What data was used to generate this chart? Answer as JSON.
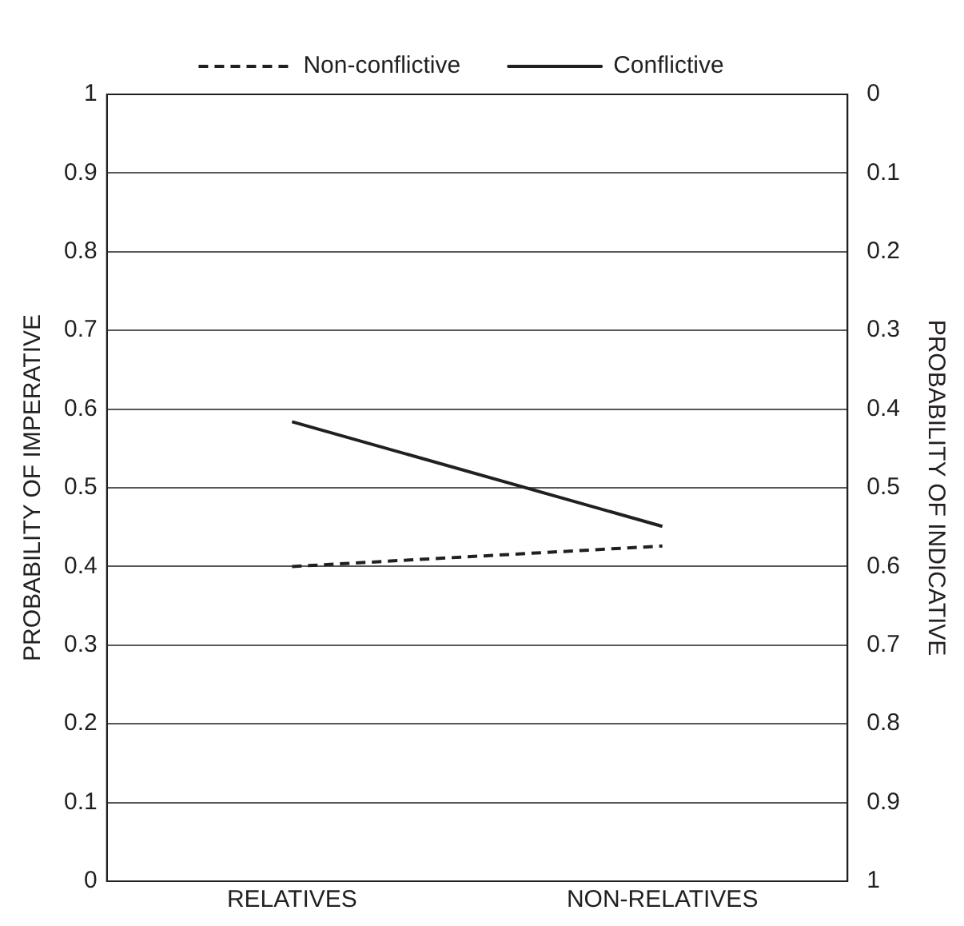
{
  "chart_data": {
    "type": "line",
    "ylabel": "PROBABILITY OF IMPERATIVE",
    "y2label": "PROBABILITY OF INDICATIVE",
    "categories": [
      "RELATIVES",
      "NON-RELATIVES"
    ],
    "series": [
      {
        "name": "Non-conflictive",
        "color": "#231f20",
        "values": [
          0.4,
          0.426
        ],
        "line_style": "dashed"
      },
      {
        "name": "Conflictive",
        "color": "#231f20",
        "values": [
          0.584,
          0.451
        ],
        "line_style": "solid"
      }
    ],
    "ylim": [
      0,
      1
    ],
    "yticks": [
      0,
      0.1,
      0.2,
      0.3,
      0.4,
      0.5,
      0.6,
      0.7,
      0.8,
      0.9,
      1
    ],
    "y2lim": [
      1,
      0
    ],
    "y2ticks": [
      1,
      0.9,
      0.8,
      0.7,
      0.6,
      0.5,
      0.4,
      0.3,
      0.2,
      0.1,
      0
    ],
    "grid": "y",
    "legend": "top",
    "marker": "none"
  }
}
